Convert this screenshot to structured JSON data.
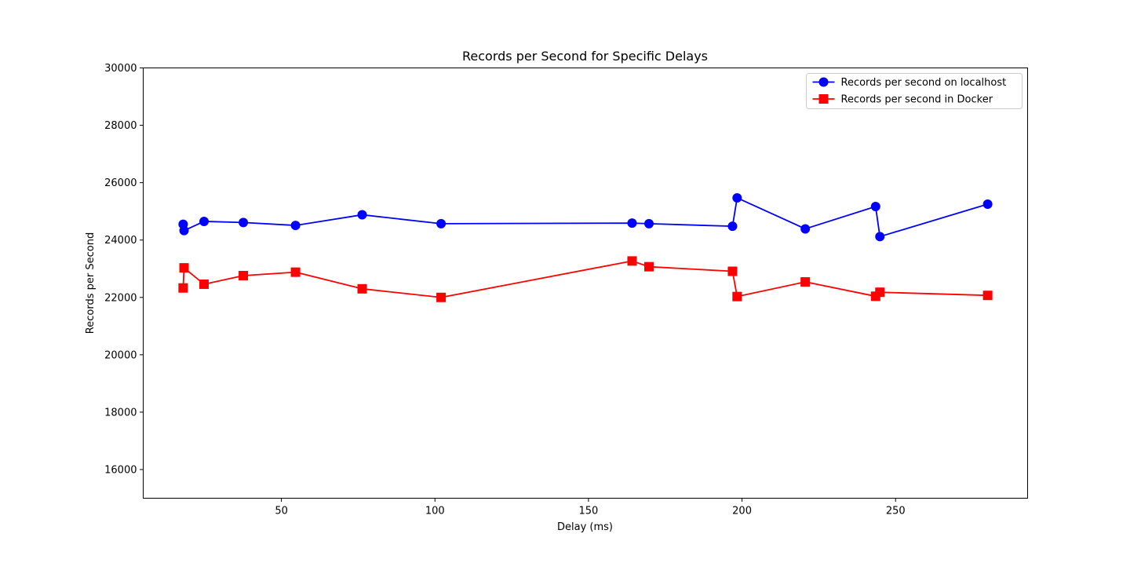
{
  "chart_data": {
    "type": "line",
    "title": "Records per Second for Specific Delays",
    "xlabel": "Delay (ms)",
    "ylabel": "Records per Second",
    "xlim": [
      5,
      293
    ],
    "ylim": [
      15000,
      30000
    ],
    "xticks": [
      50,
      100,
      150,
      200,
      250
    ],
    "xtick_labels": [
      "50",
      "100",
      "150",
      "200",
      "250"
    ],
    "yticks": [
      16000,
      18000,
      20000,
      22000,
      24000,
      26000,
      28000,
      30000
    ],
    "ytick_labels": [
      "16000",
      "18000",
      "20000",
      "22000",
      "24000",
      "26000",
      "28000",
      "30000"
    ],
    "grid": false,
    "legend_position": "top-right",
    "series": [
      {
        "name": "Records per second on localhost",
        "color": "#0000ff",
        "marker": "circle",
        "x": [
          18.0,
          18.3,
          24.8,
          37.6,
          54.6,
          76.3,
          102.0,
          164.2,
          169.7,
          196.9,
          198.4,
          220.6,
          243.5,
          244.9,
          280.0
        ],
        "y": [
          24550,
          24330,
          24650,
          24610,
          24510,
          24880,
          24570,
          24590,
          24570,
          24480,
          25470,
          24390,
          25170,
          24120,
          25250
        ]
      },
      {
        "name": "Records per second in Docker",
        "color": "#ff0000",
        "marker": "square",
        "x": [
          18.0,
          18.3,
          24.8,
          37.6,
          54.6,
          76.3,
          102.0,
          164.2,
          169.7,
          196.9,
          198.4,
          220.6,
          243.5,
          244.9,
          280.0
        ],
        "y": [
          22330,
          23030,
          22460,
          22760,
          22880,
          22300,
          22000,
          23270,
          23070,
          22910,
          22030,
          22540,
          22040,
          22180,
          22070
        ]
      }
    ]
  }
}
